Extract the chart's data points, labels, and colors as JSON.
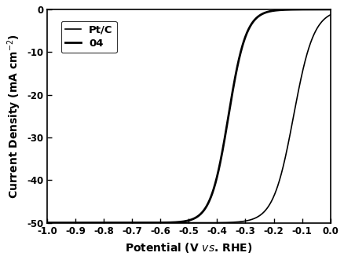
{
  "title": "",
  "xlabel": "Potential (V vs. RHE)",
  "ylabel": "Current Density (mA cm$^{-2}$)",
  "xlim": [
    -1.0,
    0.0
  ],
  "ylim": [
    -50,
    0
  ],
  "xticks": [
    -1.0,
    -0.9,
    -0.8,
    -0.7,
    -0.6,
    -0.5,
    -0.4,
    -0.3,
    -0.2,
    -0.1,
    0.0
  ],
  "yticks": [
    0,
    -10,
    -20,
    -30,
    -40,
    -50
  ],
  "legend_labels": [
    "Pt/C",
    "04"
  ],
  "line_color": "#000000",
  "background_color": "#ffffff",
  "curve_ptc": {
    "half_wave": -0.13,
    "limit_current": -50,
    "steepness": 28
  },
  "curve_04": {
    "half_wave": -0.36,
    "limit_current": -50,
    "steepness": 32
  },
  "lw_ptc": 1.2,
  "lw_04": 2.0
}
